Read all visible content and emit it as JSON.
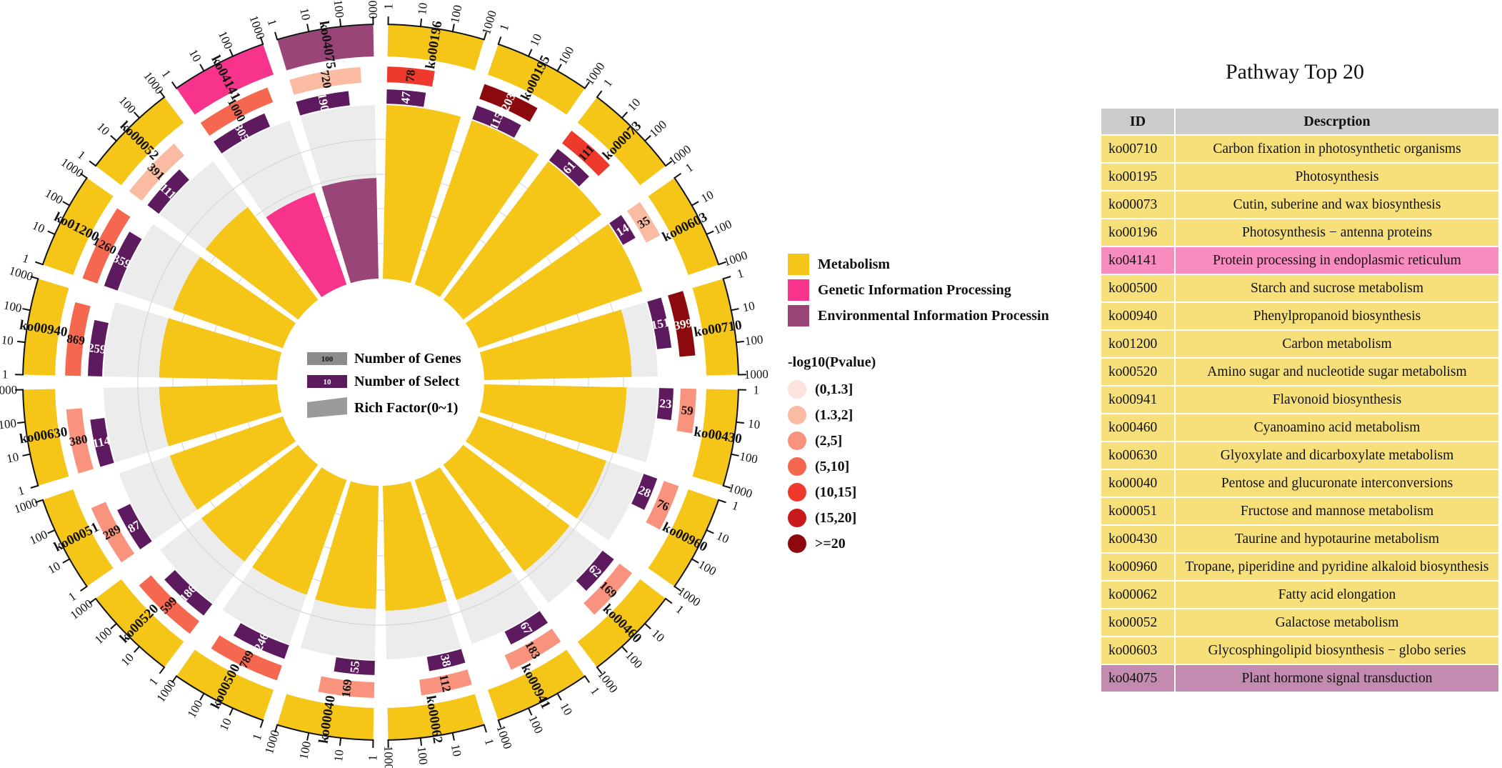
{
  "chart_data": {
    "type": "circos",
    "categories_legend": [
      {
        "label": "Metabolism",
        "color": "#f5c518"
      },
      {
        "label": "Genetic Information Processing",
        "color": "#f8338b"
      },
      {
        "label": "Environmental Information Processin",
        "color": "#9a4577"
      }
    ],
    "track_legend": {
      "genes_box": "100",
      "genes_label": "Number of Genes",
      "select_box": "10",
      "select_label": "Number of Select",
      "rich_label": "Rich Factor(0~1)"
    },
    "pvalue_legend": {
      "title": "-log10(Pvalue)",
      "items": [
        {
          "label": "(0,1.3]",
          "color": "#fde3db"
        },
        {
          "label": "(1.3,2]",
          "color": "#fbbba2"
        },
        {
          "label": "(2,5]",
          "color": "#f9937d"
        },
        {
          "label": "(5,10]",
          "color": "#f5684f"
        },
        {
          "label": "(10,15]",
          "color": "#ed3a2d"
        },
        {
          "label": "(15,20]",
          "color": "#c81a1d"
        },
        {
          "label": ">=20",
          "color": "#8c0a0d"
        }
      ]
    },
    "scale_ticks": [
      "1",
      "10",
      "100",
      "1000"
    ],
    "pathways": [
      {
        "id": "ko00196",
        "category": "Metabolism",
        "genes": "78",
        "select": "47",
        "rich": 1.0,
        "pbin": 4
      },
      {
        "id": "ko00195",
        "category": "Metabolism",
        "genes": "203",
        "select": "115",
        "rich": 1.0,
        "pbin": 6
      },
      {
        "id": "ko00073",
        "category": "Metabolism",
        "genes": "111",
        "select": "61",
        "rich": 1.0,
        "pbin": 4
      },
      {
        "id": "ko00603",
        "category": "Metabolism",
        "genes": "35",
        "select": "14",
        "rich": 1.0,
        "pbin": 1
      },
      {
        "id": "ko00710",
        "category": "Metabolism",
        "genes": "399",
        "select": "151",
        "rich": 0.85,
        "pbin": 6
      },
      {
        "id": "ko00430",
        "category": "Metabolism",
        "genes": "59",
        "select": "23",
        "rich": 0.82,
        "pbin": 2
      },
      {
        "id": "ko00960",
        "category": "Metabolism",
        "genes": "76",
        "select": "28",
        "rich": 0.78,
        "pbin": 2
      },
      {
        "id": "ko00460",
        "category": "Metabolism",
        "genes": "169",
        "select": "62",
        "rich": 0.77,
        "pbin": 2
      },
      {
        "id": "ko00941",
        "category": "Metabolism",
        "genes": "183",
        "select": "67",
        "rich": 0.73,
        "pbin": 2
      },
      {
        "id": "ko00062",
        "category": "Metabolism",
        "genes": "112",
        "select": "38",
        "rich": 0.72,
        "pbin": 2
      },
      {
        "id": "ko00040",
        "category": "Metabolism",
        "genes": "169",
        "select": "55",
        "rich": 0.71,
        "pbin": 2
      },
      {
        "id": "ko00500",
        "category": "Metabolism",
        "genes": "789",
        "select": "246",
        "rich": 0.7,
        "pbin": 3
      },
      {
        "id": "ko00520",
        "category": "Metabolism",
        "genes": "599",
        "select": "186",
        "rich": 0.7,
        "pbin": 3
      },
      {
        "id": "ko00051",
        "category": "Metabolism",
        "genes": "289",
        "select": "87",
        "rich": 0.69,
        "pbin": 2
      },
      {
        "id": "ko00630",
        "category": "Metabolism",
        "genes": "380",
        "select": "114",
        "rich": 0.68,
        "pbin": 2
      },
      {
        "id": "ko00940",
        "category": "Metabolism",
        "genes": "869",
        "select": "259",
        "rich": 0.68,
        "pbin": 3
      },
      {
        "id": "ko01200",
        "category": "Metabolism",
        "genes": "1260",
        "select": "359",
        "rich": 0.67,
        "pbin": 3
      },
      {
        "id": "ko00052",
        "category": "Metabolism",
        "genes": "391",
        "select": "111",
        "rich": 0.67,
        "pbin": 1
      },
      {
        "id": "ko04141",
        "category": "Genetic Information Processing",
        "genes": "1000",
        "select": "305",
        "rich": 0.56,
        "pbin": 3
      },
      {
        "id": "ko04075",
        "category": "Environmental Information Processin",
        "genes": "720",
        "select": "190",
        "rich": 0.58,
        "pbin": 1
      }
    ]
  },
  "table": {
    "title": "Pathway Top 20",
    "headers": {
      "id": "ID",
      "desc": "Descrption"
    },
    "rows": [
      {
        "id": "ko00710",
        "desc": "Carbon fixation in photosynthetic organisms",
        "type": "metab"
      },
      {
        "id": "ko00195",
        "desc": "Photosynthesis",
        "type": "metab"
      },
      {
        "id": "ko00073",
        "desc": "Cutin, suberine and wax biosynthesis",
        "type": "metab"
      },
      {
        "id": "ko00196",
        "desc": "Photosynthesis − antenna proteins",
        "type": "metab"
      },
      {
        "id": "ko04141",
        "desc": "Protein processing in endoplasmic reticulum",
        "type": "gen"
      },
      {
        "id": "ko00500",
        "desc": "Starch and sucrose metabolism",
        "type": "metab"
      },
      {
        "id": "ko00940",
        "desc": "Phenylpropanoid biosynthesis",
        "type": "metab"
      },
      {
        "id": "ko01200",
        "desc": "Carbon metabolism",
        "type": "metab"
      },
      {
        "id": "ko00520",
        "desc": "Amino sugar and nucleotide sugar metabolism",
        "type": "metab"
      },
      {
        "id": "ko00941",
        "desc": "Flavonoid biosynthesis",
        "type": "metab"
      },
      {
        "id": "ko00460",
        "desc": "Cyanoamino acid metabolism",
        "type": "metab"
      },
      {
        "id": "ko00630",
        "desc": "Glyoxylate and dicarboxylate metabolism",
        "type": "metab"
      },
      {
        "id": "ko00040",
        "desc": "Pentose and glucuronate interconversions",
        "type": "metab"
      },
      {
        "id": "ko00051",
        "desc": "Fructose and mannose metabolism",
        "type": "metab"
      },
      {
        "id": "ko00430",
        "desc": "Taurine and hypotaurine metabolism",
        "type": "metab"
      },
      {
        "id": "ko00960",
        "desc": "Tropane, piperidine and pyridine alkaloid biosynthesis",
        "type": "metab"
      },
      {
        "id": "ko00062",
        "desc": "Fatty acid elongation",
        "type": "metab"
      },
      {
        "id": "ko00052",
        "desc": "Galactose metabolism",
        "type": "metab"
      },
      {
        "id": "ko00603",
        "desc": "Glycosphingolipid biosynthesis − globo series",
        "type": "metab"
      },
      {
        "id": "ko04075",
        "desc": "Plant hormone signal transduction",
        "type": "env"
      }
    ]
  }
}
